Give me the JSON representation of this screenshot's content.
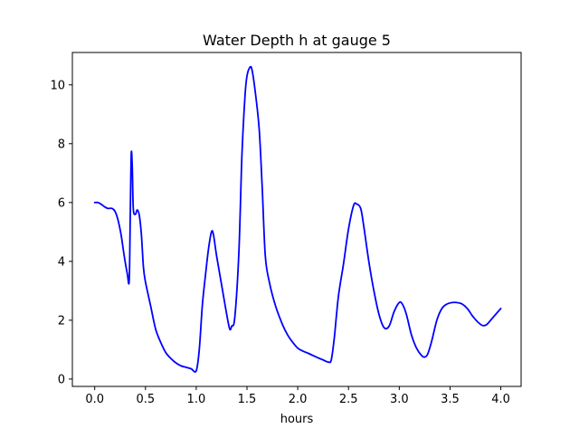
{
  "chart_data": {
    "type": "line",
    "title": "Water Depth h at gauge 5",
    "xlabel": "hours",
    "ylabel": "",
    "xlim": [
      -0.22,
      4.2
    ],
    "ylim": [
      -0.25,
      11.1
    ],
    "xticks": [
      0.0,
      0.5,
      1.0,
      1.5,
      2.0,
      2.5,
      3.0,
      3.5,
      4.0
    ],
    "xtick_labels": [
      "0.0",
      "0.5",
      "1.0",
      "1.5",
      "2.0",
      "2.5",
      "3.0",
      "3.5",
      "4.0"
    ],
    "yticks": [
      0,
      2,
      4,
      6,
      8,
      10
    ],
    "ytick_labels": [
      "0",
      "2",
      "4",
      "6",
      "8",
      "10"
    ],
    "grid": false,
    "legend": "none",
    "series": [
      {
        "color": "#0000ff",
        "x": [
          0.0,
          0.03,
          0.06,
          0.1,
          0.13,
          0.17,
          0.2,
          0.23,
          0.26,
          0.29,
          0.32,
          0.34,
          0.35,
          0.36,
          0.37,
          0.38,
          0.4,
          0.42,
          0.44,
          0.46,
          0.48,
          0.5,
          0.55,
          0.6,
          0.65,
          0.7,
          0.75,
          0.8,
          0.85,
          0.9,
          0.95,
          1.0,
          1.03,
          1.06,
          1.09,
          1.12,
          1.15,
          1.17,
          1.2,
          1.25,
          1.3,
          1.33,
          1.35,
          1.38,
          1.42,
          1.45,
          1.48,
          1.5,
          1.53,
          1.55,
          1.58,
          1.62,
          1.65,
          1.68,
          1.72,
          1.78,
          1.85,
          1.9,
          1.95,
          2.0,
          2.05,
          2.1,
          2.15,
          2.2,
          2.25,
          2.3,
          2.33,
          2.36,
          2.4,
          2.45,
          2.5,
          2.55,
          2.58,
          2.62,
          2.65,
          2.7,
          2.75,
          2.8,
          2.85,
          2.9,
          2.95,
          3.0,
          3.03,
          3.07,
          3.12,
          3.17,
          3.22,
          3.25,
          3.28,
          3.32,
          3.37,
          3.42,
          3.47,
          3.52,
          3.57,
          3.62,
          3.67,
          3.72,
          3.77,
          3.82,
          3.86,
          3.9,
          3.95,
          4.0
        ],
        "y": [
          6.0,
          6.0,
          5.95,
          5.85,
          5.8,
          5.8,
          5.7,
          5.4,
          4.9,
          4.2,
          3.6,
          3.35,
          5.5,
          7.65,
          7.2,
          5.8,
          5.6,
          5.75,
          5.55,
          4.9,
          3.8,
          3.3,
          2.5,
          1.7,
          1.25,
          0.9,
          0.7,
          0.55,
          0.45,
          0.4,
          0.35,
          0.28,
          1.0,
          2.5,
          3.5,
          4.4,
          5.0,
          4.9,
          4.2,
          3.2,
          2.2,
          1.7,
          1.8,
          2.1,
          4.3,
          7.6,
          9.6,
          10.3,
          10.6,
          10.5,
          9.8,
          8.5,
          6.5,
          4.2,
          3.3,
          2.5,
          1.85,
          1.5,
          1.25,
          1.05,
          0.95,
          0.88,
          0.8,
          0.72,
          0.65,
          0.58,
          0.65,
          1.4,
          2.8,
          3.9,
          5.1,
          5.9,
          5.95,
          5.8,
          5.2,
          4.0,
          3.0,
          2.2,
          1.75,
          1.8,
          2.3,
          2.6,
          2.55,
          2.2,
          1.5,
          1.05,
          0.8,
          0.75,
          0.85,
          1.3,
          2.0,
          2.4,
          2.55,
          2.6,
          2.6,
          2.55,
          2.4,
          2.15,
          1.95,
          1.82,
          1.85,
          2.0,
          2.2,
          2.4
        ]
      }
    ]
  }
}
